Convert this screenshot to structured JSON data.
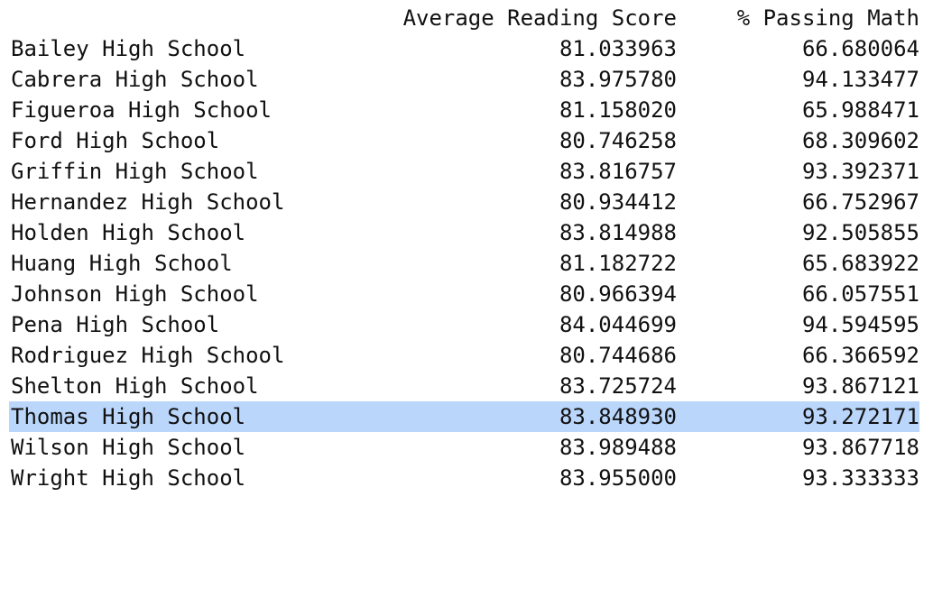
{
  "table": {
    "columns": [
      "",
      "Average Reading Score",
      "% Passing Math"
    ],
    "rows": [
      {
        "name": "Bailey High School",
        "reading": "81.033963",
        "math": "66.680064"
      },
      {
        "name": "Cabrera High School",
        "reading": "83.975780",
        "math": "94.133477"
      },
      {
        "name": "Figueroa High School",
        "reading": "81.158020",
        "math": "65.988471"
      },
      {
        "name": "Ford High School",
        "reading": "80.746258",
        "math": "68.309602"
      },
      {
        "name": "Griffin High School",
        "reading": "83.816757",
        "math": "93.392371"
      },
      {
        "name": "Hernandez High School",
        "reading": "80.934412",
        "math": "66.752967"
      },
      {
        "name": "Holden High School",
        "reading": "83.814988",
        "math": "92.505855"
      },
      {
        "name": "Huang High School",
        "reading": "81.182722",
        "math": "65.683922"
      },
      {
        "name": "Johnson High School",
        "reading": "80.966394",
        "math": "66.057551"
      },
      {
        "name": "Pena High School",
        "reading": "84.044699",
        "math": "94.594595"
      },
      {
        "name": "Rodriguez High School",
        "reading": "80.744686",
        "math": "66.366592"
      },
      {
        "name": "Shelton High School",
        "reading": "83.725724",
        "math": "93.867121"
      },
      {
        "name": "Thomas High School",
        "reading": "83.848930",
        "math": "93.272171"
      },
      {
        "name": "Wilson High School",
        "reading": "83.989488",
        "math": "93.867718"
      },
      {
        "name": "Wright High School",
        "reading": "83.955000",
        "math": "93.333333"
      }
    ],
    "selected_row": "Thomas High School"
  },
  "colors": {
    "highlight": "#bad6fb",
    "text": "#111111",
    "background": "#ffffff"
  }
}
